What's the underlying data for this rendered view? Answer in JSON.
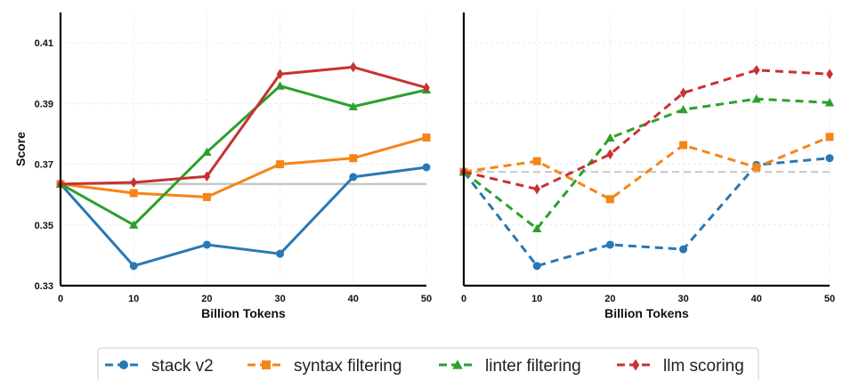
{
  "chart_data": [
    {
      "type": "line",
      "panel": "left",
      "xlabel": "Billion Tokens",
      "ylabel": "Score",
      "x": [
        0,
        10,
        20,
        30,
        40,
        50
      ],
      "xticks": [
        "0",
        "10",
        "20",
        "30",
        "40",
        "50"
      ],
      "yticks": [
        "0.33",
        "0.35",
        "0.37",
        "0.39",
        "0.41"
      ],
      "xlim": [
        0,
        50
      ],
      "ylim": [
        0.33,
        0.42
      ],
      "grid": true,
      "linestyle": "solid",
      "reference_line": 0.3635,
      "series": [
        {
          "name": "stack v2",
          "values": [
            0.3635,
            0.3365,
            0.3435,
            0.3405,
            0.3658,
            0.369
          ]
        },
        {
          "name": "syntax filtering",
          "values": [
            0.3635,
            0.3605,
            0.3592,
            0.37,
            0.372,
            0.3788
          ]
        },
        {
          "name": "linter filtering",
          "values": [
            0.3635,
            0.35,
            0.374,
            0.3958,
            0.389,
            0.3945
          ]
        },
        {
          "name": "llm scoring",
          "values": [
            0.3635,
            0.364,
            0.366,
            0.3997,
            0.402,
            0.3952
          ]
        }
      ]
    },
    {
      "type": "line",
      "panel": "right",
      "xlabel": "Billion Tokens",
      "x": [
        0,
        10,
        20,
        30,
        40,
        50
      ],
      "xticks": [
        "0",
        "10",
        "20",
        "30",
        "40",
        "50"
      ],
      "xlim": [
        0,
        50
      ],
      "ylim": [
        0.33,
        0.42
      ],
      "grid": true,
      "linestyle": "dashed",
      "reference_line": 0.3675,
      "series": [
        {
          "name": "stack v2",
          "values": [
            0.3675,
            0.3365,
            0.3435,
            0.342,
            0.3698,
            0.372
          ]
        },
        {
          "name": "syntax filtering",
          "values": [
            0.3675,
            0.371,
            0.3585,
            0.3763,
            0.369,
            0.379
          ]
        },
        {
          "name": "linter filtering",
          "values": [
            0.3675,
            0.3488,
            0.3787,
            0.388,
            0.3915,
            0.3903
          ]
        },
        {
          "name": "llm scoring",
          "values": [
            0.3675,
            0.3618,
            0.3733,
            0.3935,
            0.401,
            0.3997
          ]
        }
      ]
    }
  ],
  "legend": [
    {
      "name": "stack v2",
      "color": "#2878b5",
      "marker": "circle"
    },
    {
      "name": "syntax filtering",
      "color": "#f58518",
      "marker": "square"
    },
    {
      "name": "linter filtering",
      "color": "#2ca02c",
      "marker": "triangle"
    },
    {
      "name": "llm scoring",
      "color": "#c83232",
      "marker": "diamond"
    }
  ],
  "colors": {
    "reference_left": "#bdbdbd",
    "reference_right": "#c7c7c7",
    "grid": "#ececec",
    "axis": "#000000"
  }
}
